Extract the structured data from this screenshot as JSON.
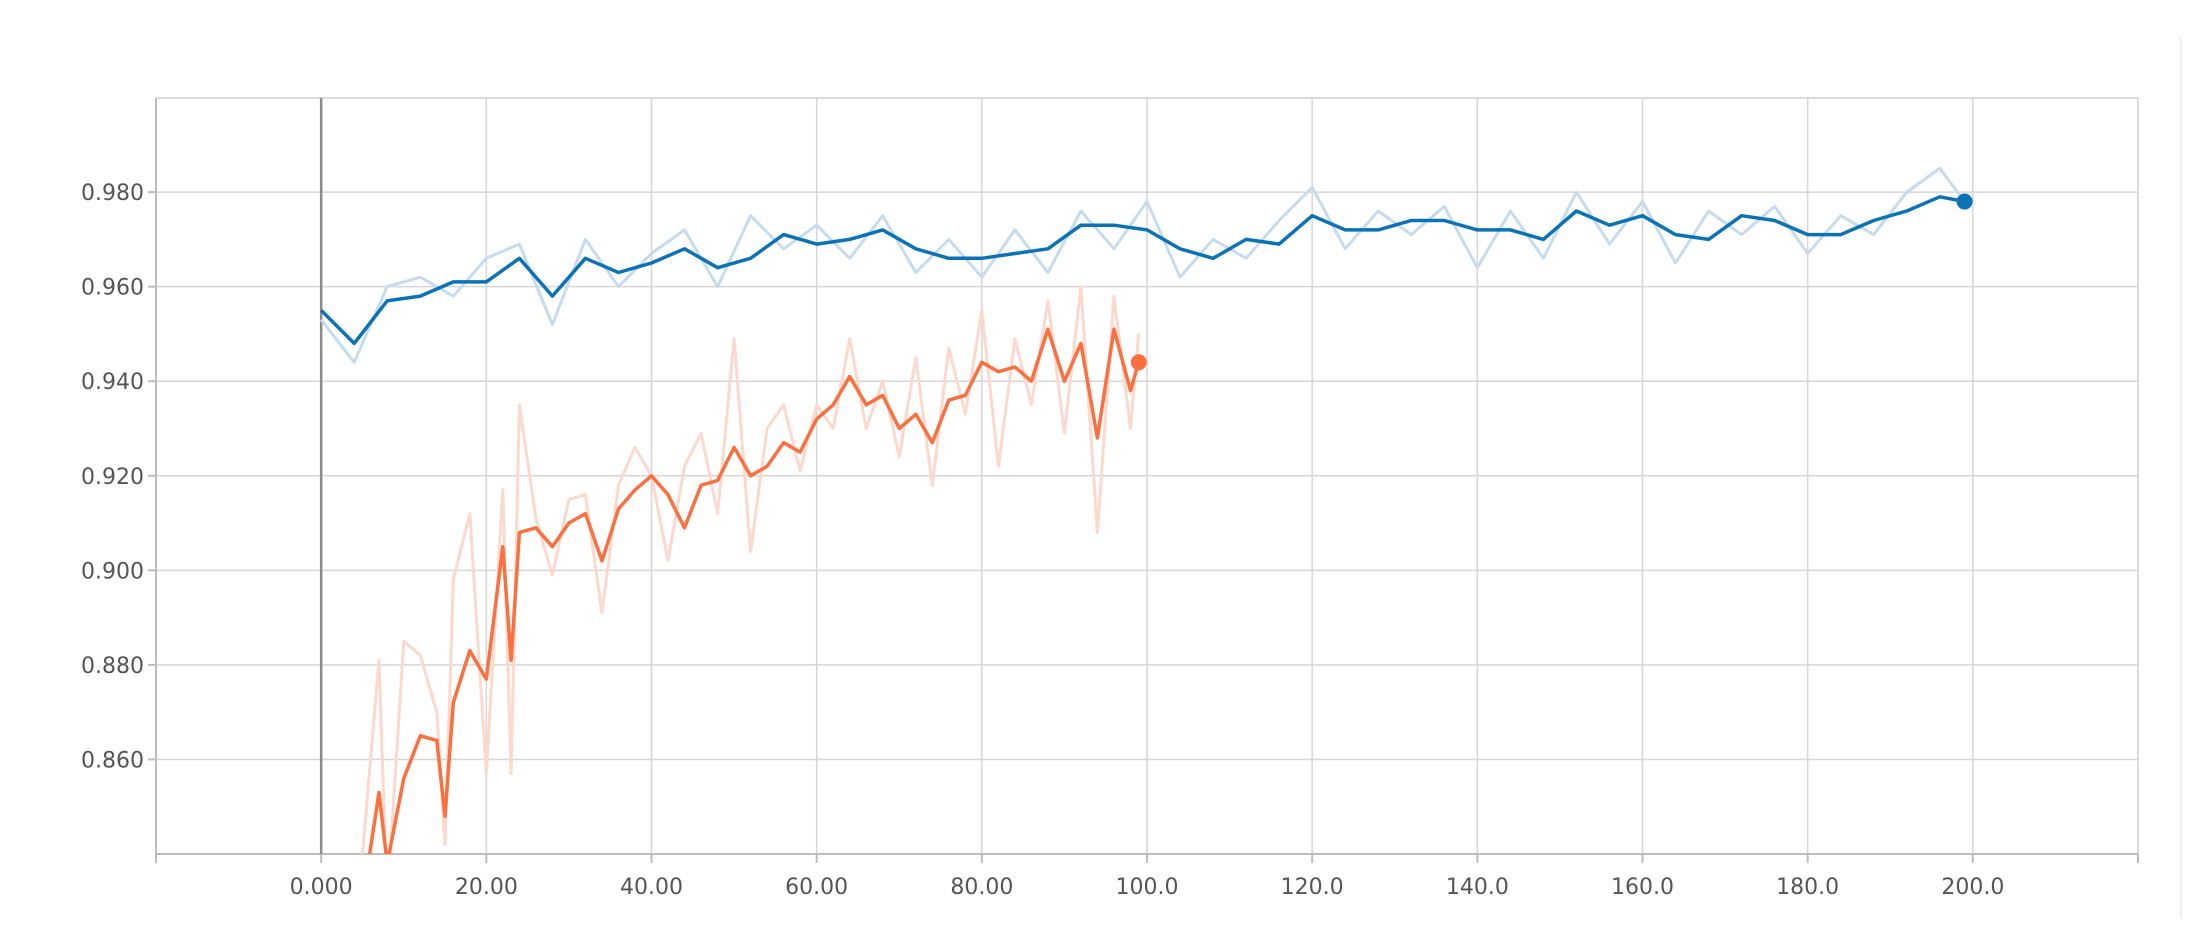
{
  "chart_data": {
    "type": "line",
    "title": "",
    "xlabel": "",
    "ylabel": "",
    "xlim": [
      -20,
      220
    ],
    "ylim": [
      0.84,
      0.9999
    ],
    "grid": true,
    "x_ticks": [
      0,
      20,
      40,
      60,
      80,
      100,
      120,
      140,
      160,
      180,
      200
    ],
    "x_tick_labels": [
      "0.000",
      "20.00",
      "40.00",
      "60.00",
      "80.00",
      "100.0",
      "120.0",
      "140.0",
      "160.0",
      "180.0",
      "200.0"
    ],
    "y_ticks": [
      0.86,
      0.88,
      0.9,
      0.92,
      0.94,
      0.96,
      0.98
    ],
    "y_tick_labels": [
      "0.860",
      "0.880",
      "0.900",
      "0.920",
      "0.940",
      "0.960",
      "0.980"
    ],
    "series": [
      {
        "color": "#0b72b5",
        "raw_color": "#c6dcee",
        "x": [
          0,
          4,
          8,
          12,
          16,
          20,
          24,
          28,
          32,
          36,
          40,
          44,
          48,
          52,
          56,
          60,
          64,
          68,
          72,
          76,
          80,
          84,
          88,
          92,
          96,
          100,
          104,
          108,
          112,
          116,
          120,
          124,
          128,
          132,
          136,
          140,
          144,
          148,
          152,
          156,
          160,
          164,
          168,
          172,
          176,
          180,
          184,
          188,
          192,
          196,
          199
        ],
        "smoothed": [
          0.955,
          0.948,
          0.957,
          0.958,
          0.961,
          0.961,
          0.966,
          0.958,
          0.966,
          0.963,
          0.965,
          0.968,
          0.964,
          0.966,
          0.971,
          0.969,
          0.97,
          0.972,
          0.968,
          0.966,
          0.966,
          0.967,
          0.968,
          0.973,
          0.973,
          0.972,
          0.968,
          0.966,
          0.97,
          0.969,
          0.975,
          0.972,
          0.972,
          0.974,
          0.974,
          0.972,
          0.972,
          0.97,
          0.976,
          0.973,
          0.975,
          0.971,
          0.97,
          0.975,
          0.974,
          0.971,
          0.971,
          0.974,
          0.976,
          0.979,
          0.978
        ],
        "raw": [
          0.953,
          0.944,
          0.96,
          0.962,
          0.958,
          0.966,
          0.969,
          0.952,
          0.97,
          0.96,
          0.967,
          0.972,
          0.96,
          0.975,
          0.968,
          0.973,
          0.966,
          0.975,
          0.963,
          0.97,
          0.962,
          0.972,
          0.963,
          0.976,
          0.968,
          0.978,
          0.962,
          0.97,
          0.966,
          0.974,
          0.981,
          0.968,
          0.976,
          0.971,
          0.977,
          0.964,
          0.976,
          0.966,
          0.98,
          0.969,
          0.978,
          0.965,
          0.976,
          0.971,
          0.977,
          0.967,
          0.975,
          0.971,
          0.98,
          0.985,
          0.978
        ],
        "end_value": 0.978
      },
      {
        "color": "#fc6f3e",
        "raw_color": "#fcd9cc",
        "x": [
          5,
          7,
          8,
          10,
          12,
          14,
          15,
          16,
          18,
          20,
          22,
          23,
          24,
          26,
          28,
          30,
          32,
          34,
          36,
          38,
          40,
          42,
          44,
          46,
          48,
          50,
          52,
          54,
          56,
          58,
          60,
          62,
          64,
          66,
          68,
          70,
          72,
          74,
          76,
          78,
          80,
          82,
          84,
          86,
          88,
          90,
          92,
          94,
          96,
          98,
          99
        ],
        "smoothed": [
          0.83,
          0.853,
          0.838,
          0.856,
          0.865,
          0.864,
          0.848,
          0.872,
          0.883,
          0.877,
          0.905,
          0.881,
          0.908,
          0.909,
          0.905,
          0.91,
          0.912,
          0.902,
          0.913,
          0.917,
          0.92,
          0.916,
          0.909,
          0.918,
          0.919,
          0.926,
          0.92,
          0.922,
          0.927,
          0.925,
          0.932,
          0.935,
          0.941,
          0.935,
          0.937,
          0.93,
          0.933,
          0.927,
          0.936,
          0.937,
          0.944,
          0.942,
          0.943,
          0.94,
          0.951,
          0.94,
          0.948,
          0.928,
          0.951,
          0.938,
          0.944
        ],
        "raw": [
          0.84,
          0.881,
          0.83,
          0.885,
          0.882,
          0.87,
          0.842,
          0.898,
          0.912,
          0.857,
          0.917,
          0.857,
          0.935,
          0.911,
          0.899,
          0.915,
          0.916,
          0.891,
          0.918,
          0.926,
          0.92,
          0.902,
          0.922,
          0.929,
          0.912,
          0.949,
          0.904,
          0.93,
          0.935,
          0.921,
          0.935,
          0.93,
          0.949,
          0.93,
          0.94,
          0.924,
          0.945,
          0.918,
          0.947,
          0.933,
          0.955,
          0.922,
          0.949,
          0.935,
          0.957,
          0.929,
          0.96,
          0.908,
          0.958,
          0.93,
          0.95
        ],
        "end_value": 0.944
      }
    ]
  }
}
